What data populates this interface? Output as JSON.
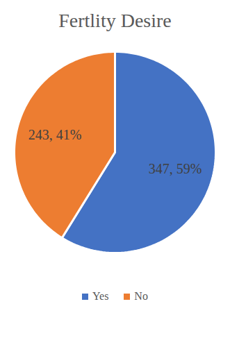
{
  "chart_data": {
    "type": "pie",
    "title": "Fertlity Desire",
    "categories": [
      "Yes",
      "No"
    ],
    "values": [
      347,
      243
    ],
    "value_labels": [
      "347, 59%",
      "243, 41%"
    ],
    "data_labels": true,
    "colors": [
      "#4472C4",
      "#ED7D31"
    ],
    "legend": "bottom"
  }
}
